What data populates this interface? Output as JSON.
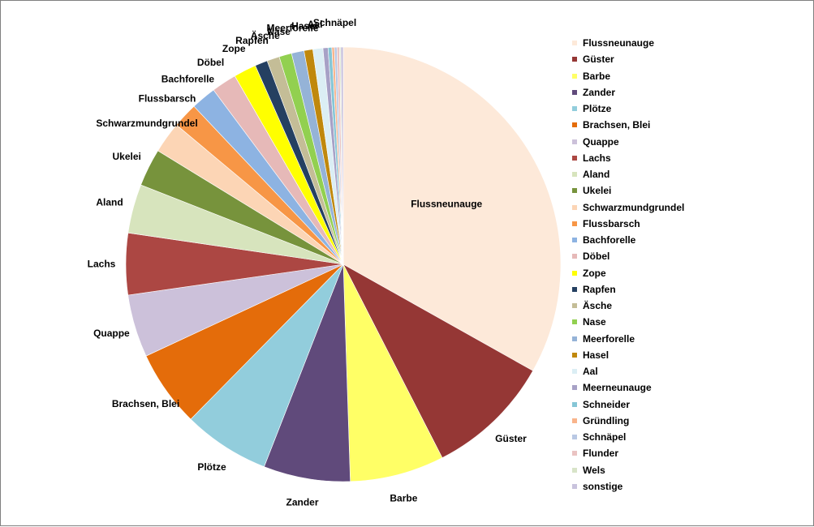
{
  "chart_data": {
    "type": "pie",
    "title": "",
    "legend_position": "right",
    "start_angle_deg": 0,
    "direction": "clockwise",
    "series": [
      {
        "categories": [
          "Flussneunauge",
          "Güster",
          "Barbe",
          "Zander",
          "Plötze",
          "Brachsen, Blei",
          "Quappe",
          "Lachs",
          "Aland",
          "Ukelei",
          "Schwarzmundgrundel",
          "Flussbarsch",
          "Bachforelle",
          "Döbel",
          "Zope",
          "Rapfen",
          "Äsche",
          "Nase",
          "Meerforelle",
          "Hasel",
          "Aal",
          "Meerneunauge",
          "Schneider",
          "Gründling",
          "Schnäpel",
          "Flunder",
          "Wels",
          "sonstige"
        ],
        "values": [
          35.5,
          10.0,
          7.5,
          6.9,
          6.9,
          6.1,
          5.0,
          4.9,
          3.9,
          3.0,
          2.5,
          2.0,
          2.0,
          2.0,
          1.8,
          1.0,
          1.0,
          1.0,
          1.0,
          0.7,
          0.8,
          0.4,
          0.3,
          0.2,
          0.2,
          0.2,
          0.1,
          0.2
        ],
        "colors": [
          "#FDE9D9",
          "#953735",
          "#FFFF66",
          "#604A7B",
          "#92CDDC",
          "#E46C0A",
          "#CCC1DA",
          "#AC4743",
          "#D7E4BD",
          "#77933C",
          "#FCD5B5",
          "#F79646",
          "#8DB3E2",
          "#E6B9B8",
          "#FFFF00",
          "#254061",
          "#C4BD97",
          "#92D050",
          "#95B3D7",
          "#C0880C",
          "#DBEEF4",
          "#A7A1C6",
          "#86C6D6",
          "#F9B48B",
          "#B9C8E4",
          "#EAC3C2",
          "#D8E4C8",
          "#C9C3DD"
        ],
        "labels_shown": [
          true,
          true,
          true,
          true,
          true,
          true,
          true,
          true,
          true,
          true,
          true,
          true,
          true,
          true,
          true,
          true,
          true,
          true,
          true,
          true,
          true,
          false,
          false,
          false,
          true,
          false,
          false,
          false
        ]
      }
    ]
  }
}
